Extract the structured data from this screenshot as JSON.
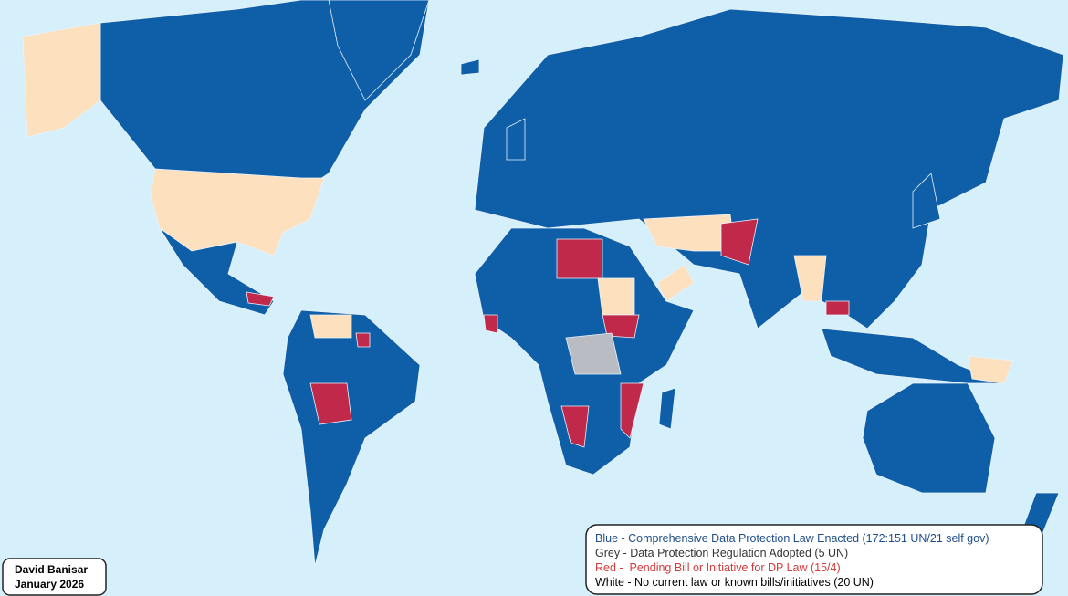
{
  "author": {
    "name": "David Banisar",
    "date": "January 2026"
  },
  "legend": [
    {
      "text": "Blue - Comprehensive Data Protection Law Enacted (172:151 UN/21 self gov)",
      "color": "#1f4f8a"
    },
    {
      "text": "Grey - Data Protection Regulation Adopted (5 UN)",
      "color": "#333333"
    },
    {
      "text": "Red -  Pending Bill or Initiative for DP Law (15/4)",
      "color": "#d03c3c"
    },
    {
      "text": "White - No current law or known bills/initiatives (20 UN)",
      "color": "#000000"
    }
  ]
}
